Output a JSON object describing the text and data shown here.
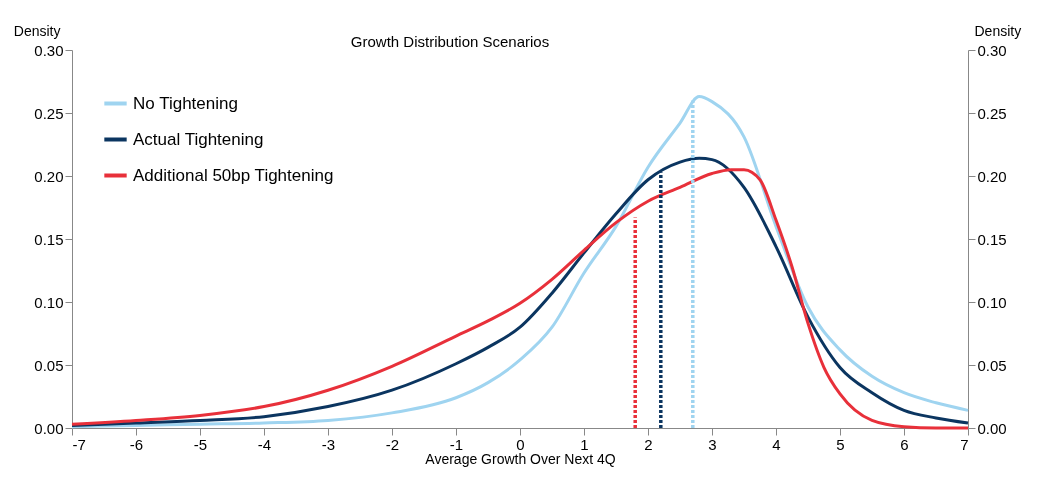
{
  "chart_data": {
    "type": "line",
    "title": "Growth Distribution Scenarios",
    "xlabel": "Average Growth Over Next 4Q",
    "ylabel": "Density",
    "y2label": "Density",
    "xlim": [
      -7,
      7
    ],
    "xticks": [
      -7,
      -6,
      -5,
      -4,
      -3,
      -2,
      -1,
      0,
      1,
      2,
      3,
      4,
      5,
      6,
      7
    ],
    "ylim": [
      0,
      0.3
    ],
    "yticks": [
      {
        "value": 0,
        "label": "0.00"
      },
      {
        "value": 0.05,
        "label": "0.05"
      },
      {
        "value": 0.1,
        "label": "0.10"
      },
      {
        "value": 0.15,
        "label": "0.15"
      },
      {
        "value": 0.2,
        "label": "0.20"
      },
      {
        "value": 0.25,
        "label": "0.25"
      },
      {
        "value": 0.3,
        "label": "0.30"
      }
    ],
    "y2lim": [
      0,
      0.3
    ],
    "y2ticks": [
      {
        "value": 0,
        "label": "0.00"
      },
      {
        "value": 0.05,
        "label": "0.05"
      },
      {
        "value": 0.1,
        "label": "0.10"
      },
      {
        "value": 0.15,
        "label": "0.15"
      },
      {
        "value": 0.2,
        "label": "0.20"
      },
      {
        "value": 0.25,
        "label": "0.25"
      },
      {
        "value": 0.3,
        "label": "0.30"
      }
    ],
    "grid": false,
    "legend": "top left",
    "line_style": "solid",
    "series": [
      {
        "name": "No Tightening",
        "color": "#9fd4f0",
        "x": [
          -7,
          -6,
          -5,
          -4,
          -3,
          -2,
          -1,
          -0.5,
          0,
          0.5,
          1,
          1.5,
          2,
          2.5,
          2.8,
          3,
          3.5,
          4,
          4.5,
          5,
          5.5,
          6,
          6.5,
          7
        ],
        "values": [
          0.001,
          0.002,
          0.003,
          0.004,
          0.006,
          0.012,
          0.024,
          0.036,
          0.054,
          0.08,
          0.123,
          0.16,
          0.207,
          0.242,
          0.263,
          0.259,
          0.231,
          0.16,
          0.096,
          0.062,
          0.041,
          0.028,
          0.02,
          0.014
        ]
      },
      {
        "name": "Actual Tightening",
        "color": "#0b3560",
        "x": [
          -7,
          -6,
          -5,
          -4,
          -3,
          -2,
          -1,
          -0.5,
          0,
          0.5,
          1,
          1.5,
          2,
          2.5,
          2.8,
          3,
          3.5,
          4,
          4.5,
          5,
          5.5,
          6,
          6.5,
          7
        ],
        "values": [
          0.002,
          0.004,
          0.006,
          0.009,
          0.017,
          0.03,
          0.051,
          0.064,
          0.08,
          0.107,
          0.139,
          0.17,
          0.197,
          0.211,
          0.214,
          0.213,
          0.191,
          0.144,
          0.088,
          0.048,
          0.028,
          0.014,
          0.008,
          0.004
        ]
      },
      {
        "name": "Additional 50bp Tightening",
        "color": "#e8303a",
        "x": [
          -7,
          -6,
          -5,
          -4,
          -3,
          -2,
          -1,
          -0.5,
          0,
          0.5,
          1,
          1.5,
          2,
          2.5,
          3,
          3.3,
          3.5,
          3.75,
          4,
          4.25,
          4.5,
          4.75,
          5,
          5.5,
          6,
          6.5,
          7
        ],
        "values": [
          0.003,
          0.006,
          0.01,
          0.017,
          0.03,
          0.049,
          0.073,
          0.085,
          0.099,
          0.118,
          0.141,
          0.163,
          0.18,
          0.191,
          0.202,
          0.205,
          0.205,
          0.197,
          0.165,
          0.128,
          0.083,
          0.048,
          0.027,
          0.006,
          0.001,
          0,
          0
        ]
      },
      {
        "color": "#e8303a",
        "line_style": "dotted",
        "x": [
          1.8,
          1.8
        ],
        "values": [
          0,
          0.167
        ]
      },
      {
        "color": "#0b3560",
        "line_style": "dotted",
        "x": [
          2.2,
          2.2
        ],
        "values": [
          0,
          0.203
        ]
      },
      {
        "color": "#9fd4f0",
        "line_style": "dotted",
        "x": [
          2.7,
          2.7
        ],
        "values": [
          0,
          0.26
        ]
      }
    ]
  }
}
